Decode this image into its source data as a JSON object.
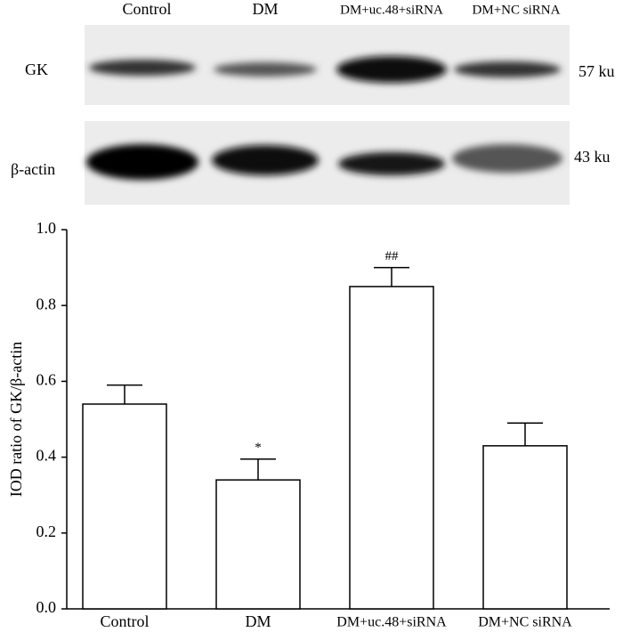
{
  "blot": {
    "lanes": [
      "Control",
      "DM",
      "DM+uc.48+siRNA",
      "DM+NC siRNA"
    ],
    "rows": [
      "GK",
      "β-actin"
    ],
    "sizes": [
      "57 ku",
      "43 ku"
    ]
  },
  "chart_data": {
    "type": "bar",
    "y_label": "IOD ratio of GK/β-actin",
    "categories": [
      "Control",
      "DM",
      "DM+uc.48+siRNA",
      "DM+NC siRNA"
    ],
    "values": [
      0.54,
      0.34,
      0.85,
      0.43
    ],
    "errors": [
      0.05,
      0.055,
      0.05,
      0.06
    ],
    "annotations": [
      null,
      "*",
      "##",
      null
    ],
    "color": "#ffffff",
    "ylim": [
      0,
      1
    ],
    "yticks": [
      {
        "value": 0,
        "label": "0.0"
      },
      0.2,
      0.4,
      0.6,
      0.8,
      {
        "value": 1,
        "label": "1.0"
      }
    ]
  }
}
